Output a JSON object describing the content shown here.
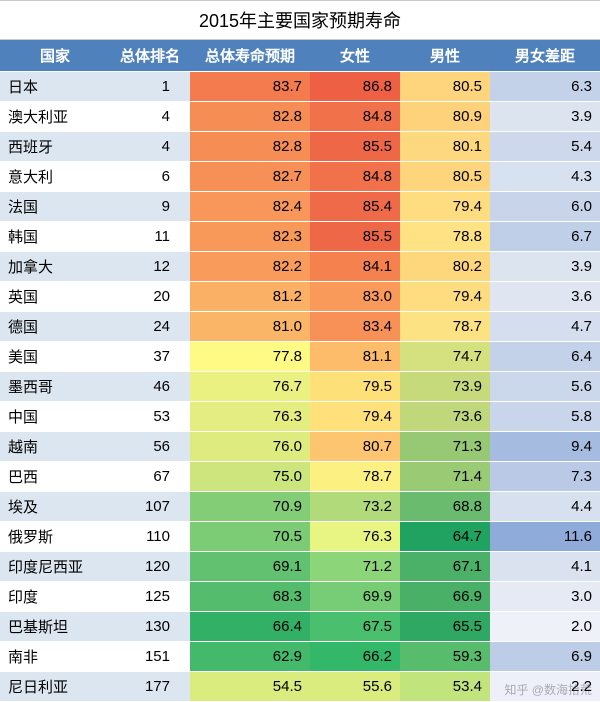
{
  "title": "2015年主要国家预期寿命",
  "watermark": "知乎 @数海拾荒",
  "columns": [
    "国家",
    "总体排名",
    "总体寿命预期",
    "女性",
    "男性",
    "男女差距"
  ],
  "column_widths": [
    "110px",
    "80px",
    "120px",
    "90px",
    "90px",
    "110px"
  ],
  "header_bg": "#4f81bd",
  "header_fg": "#ffffff",
  "stripe_colors": [
    "#dce6f1",
    "#ffffff"
  ],
  "rows": [
    {
      "country": "日本",
      "rank": 1,
      "overall": 83.7,
      "female": 86.8,
      "male": 80.5,
      "gap": 6.3,
      "c_overall": "#f47b4e",
      "c_female": "#ed6044",
      "c_male": "#fed57c",
      "c_gap": "#c4d2e9"
    },
    {
      "country": "澳大利亚",
      "rank": 4,
      "overall": 82.8,
      "female": 84.8,
      "male": 80.9,
      "gap": 3.9,
      "c_overall": "#f68d55",
      "c_female": "#f1724a",
      "c_male": "#fed27a",
      "c_gap": "#dce4f0"
    },
    {
      "country": "西班牙",
      "rank": 4,
      "overall": 82.8,
      "female": 85.5,
      "male": 80.1,
      "gap": 5.4,
      "c_overall": "#f68d55",
      "c_female": "#ee6847",
      "c_male": "#fed87e",
      "c_gap": "#cdd8ec"
    },
    {
      "country": "意大利",
      "rank": 6,
      "overall": 82.7,
      "female": 84.8,
      "male": 80.5,
      "gap": 4.3,
      "c_overall": "#f69056",
      "c_female": "#f1724a",
      "c_male": "#fed57c",
      "c_gap": "#d8e1ef"
    },
    {
      "country": "法国",
      "rank": 9,
      "overall": 82.4,
      "female": 85.4,
      "male": 79.4,
      "gap": 6.0,
      "c_overall": "#f89759",
      "c_female": "#ef6a48",
      "c_male": "#fedd81",
      "c_gap": "#c7d4ea"
    },
    {
      "country": "韩国",
      "rank": 11,
      "overall": 82.3,
      "female": 85.5,
      "male": 78.8,
      "gap": 6.7,
      "c_overall": "#f8995a",
      "c_female": "#ee6847",
      "c_male": "#fee283",
      "c_gap": "#c0cfe8"
    },
    {
      "country": "加拿大",
      "rank": 12,
      "overall": 82.2,
      "female": 84.1,
      "male": 80.2,
      "gap": 3.9,
      "c_overall": "#f89b5b",
      "c_female": "#f5814e",
      "c_male": "#fed77d",
      "c_gap": "#dce4f0"
    },
    {
      "country": "英国",
      "rank": 20,
      "overall": 81.2,
      "female": 83.0,
      "male": 79.4,
      "gap": 3.6,
      "c_overall": "#fbb165",
      "c_female": "#fa9a5a",
      "c_male": "#fedd81",
      "c_gap": "#dfe6f1"
    },
    {
      "country": "德国",
      "rank": 24,
      "overall": 81.0,
      "female": 83.4,
      "male": 78.7,
      "gap": 4.7,
      "c_overall": "#fbb567",
      "c_female": "#f89157",
      "c_male": "#fde283",
      "c_gap": "#d4deee"
    },
    {
      "country": "美国",
      "rank": 37,
      "overall": 77.8,
      "female": 81.1,
      "male": 74.7,
      "gap": 6.4,
      "c_overall": "#fefa84",
      "c_female": "#fcbc6a",
      "c_male": "#d5e07e",
      "c_gap": "#c3d1e9"
    },
    {
      "country": "墨西哥",
      "rank": 46,
      "overall": 76.7,
      "female": 79.5,
      "male": 73.9,
      "gap": 5.6,
      "c_overall": "#ebf180",
      "c_female": "#fee079",
      "c_male": "#c6da7c",
      "c_gap": "#cbd7eb"
    },
    {
      "country": "中国",
      "rank": 53,
      "overall": 76.3,
      "female": 79.4,
      "male": 73.6,
      "gap": 5.8,
      "c_overall": "#e4ee80",
      "c_female": "#fee17a",
      "c_male": "#c0d87b",
      "c_gap": "#c9d5eb"
    },
    {
      "country": "越南",
      "rank": 56,
      "overall": 76.0,
      "female": 80.7,
      "male": 71.3,
      "gap": 9.4,
      "c_overall": "#deec7f",
      "c_female": "#fdc570",
      "c_male": "#97c974",
      "c_gap": "#a5bbe0"
    },
    {
      "country": "巴西",
      "rank": 67,
      "overall": 75.0,
      "female": 78.7,
      "male": 71.4,
      "gap": 7.3,
      "c_overall": "#cce57d",
      "c_female": "#fdf082",
      "c_male": "#99ca74",
      "c_gap": "#bacae6"
    },
    {
      "country": "埃及",
      "rank": 107,
      "overall": 70.9,
      "female": 73.2,
      "male": 68.8,
      "gap": 4.4,
      "c_overall": "#82cd76",
      "c_female": "#b1db7a",
      "c_male": "#6abb6e",
      "c_gap": "#d7e0ef"
    },
    {
      "country": "俄罗斯",
      "rank": 110,
      "overall": 70.5,
      "female": 76.3,
      "male": 64.7,
      "gap": 11.6,
      "c_overall": "#7bcc75",
      "c_female": "#e9f582",
      "c_male": "#20a360",
      "c_gap": "#8fabda"
    },
    {
      "country": "印度尼西亚",
      "rank": 120,
      "overall": 69.1,
      "female": 71.2,
      "male": 67.1,
      "gap": 4.1,
      "c_overall": "#62c170",
      "c_female": "#8dd579",
      "c_male": "#4cb168",
      "c_gap": "#dae2f0"
    },
    {
      "country": "印度",
      "rank": 125,
      "overall": 68.3,
      "female": 69.9,
      "male": 66.9,
      "gap": 3.0,
      "c_overall": "#54bc6d",
      "c_female": "#76cd75",
      "c_male": "#48b067",
      "c_gap": "#e5eaf4"
    },
    {
      "country": "巴基斯坦",
      "rank": 130,
      "overall": 66.4,
      "female": 67.5,
      "male": 65.5,
      "gap": 2.0,
      "c_overall": "#32b066",
      "c_female": "#4abf6e",
      "c_male": "#2fa863",
      "c_gap": "#eff1f8"
    },
    {
      "country": "南非",
      "rank": 151,
      "overall": 62.9,
      "female": 66.2,
      "male": 59.3,
      "gap": 6.9,
      "c_overall": "#42b96b",
      "c_female": "#33b86a",
      "c_male": "#58bc6d",
      "c_gap": "#bdcde7"
    },
    {
      "country": "尼日利亚",
      "rank": 177,
      "overall": 54.5,
      "female": 55.6,
      "male": 53.4,
      "gap": 2.2,
      "c_overall": "#dbec7e",
      "c_female": "#dbec7f",
      "c_male": "#c1e47c",
      "c_gap": "#edf0f8"
    }
  ]
}
